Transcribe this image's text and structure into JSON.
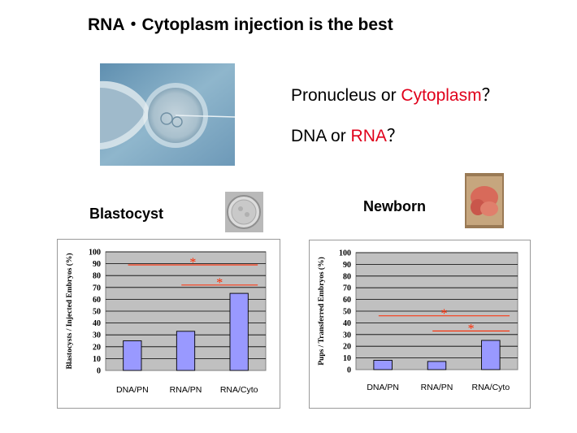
{
  "title": "RNA・Cytoplasm injection is the best",
  "questions": {
    "q1": {
      "part1": "Pronucleus or ",
      "highlight": "Cytoplasm",
      "end": "？"
    },
    "q2": {
      "part1": "DNA or ",
      "highlight": "RNA",
      "end": "？"
    }
  },
  "labels": {
    "blastocyst": "Blastocyst",
    "newborn": "Newborn"
  },
  "colors": {
    "bar": "#9999ff",
    "plot_bg": "#c0c0c0",
    "significance": "#ff2a00",
    "accent_text": "#e0001b"
  },
  "chart_data": [
    {
      "type": "bar",
      "categories": [
        "DNA/PN",
        "RNA/PN",
        "RNA/Cyto"
      ],
      "values": [
        25,
        33,
        65
      ],
      "ylabel": "Blastocysts / Injected Embryos (%)",
      "ylim": [
        0,
        100
      ],
      "yticks": [
        0,
        10,
        20,
        30,
        40,
        50,
        60,
        70,
        80,
        90,
        100
      ],
      "grid": true,
      "annotations": [
        {
          "text": "*",
          "from": "DNA/PN",
          "to": "RNA/Cyto",
          "y": 89
        },
        {
          "text": "*",
          "from": "RNA/PN",
          "to": "RNA/Cyto",
          "y": 72
        }
      ]
    },
    {
      "type": "bar",
      "categories": [
        "DNA/PN",
        "RNA/PN",
        "RNA/Cyto"
      ],
      "values": [
        8,
        7,
        25
      ],
      "ylabel": "Pups / Transferred Embryos (%)",
      "ylim": [
        0,
        100
      ],
      "yticks": [
        0,
        10,
        20,
        30,
        40,
        50,
        60,
        70,
        80,
        90,
        100
      ],
      "grid": true,
      "annotations": [
        {
          "text": "*",
          "from": "DNA/PN",
          "to": "RNA/Cyto",
          "y": 46
        },
        {
          "text": "*",
          "from": "RNA/PN",
          "to": "RNA/Cyto",
          "y": 33
        }
      ]
    }
  ]
}
